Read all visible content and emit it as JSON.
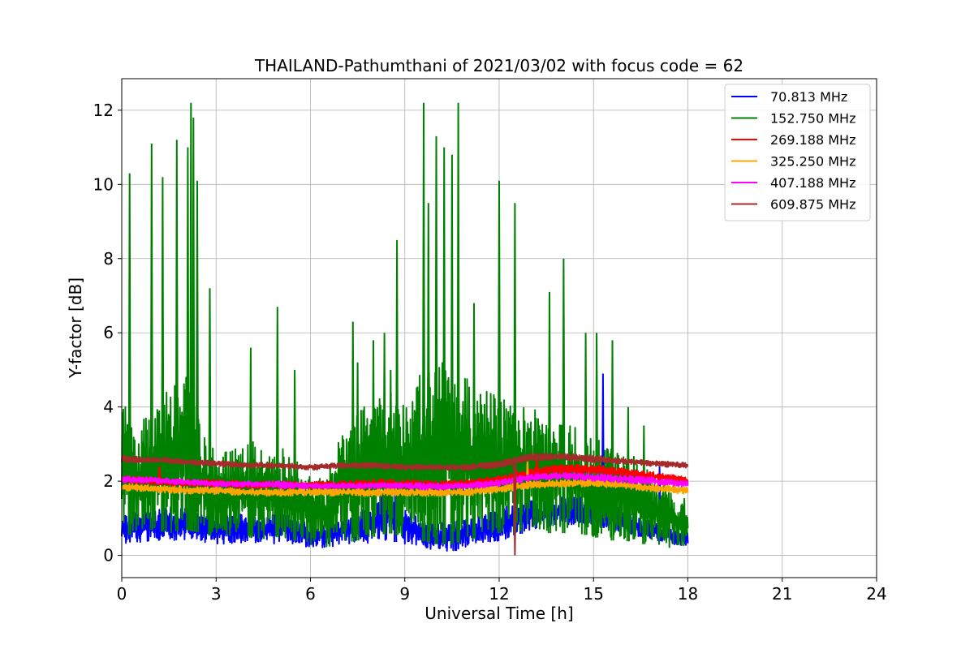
{
  "chart_data": {
    "type": "line",
    "title": "THAILAND-Pathumthani of 2021/03/02 with focus code = 62",
    "xlabel": "Universal Time [h]",
    "ylabel": "Y-factor [dB]",
    "xlim": [
      0,
      24
    ],
    "ylim": [
      -0.6,
      12.85
    ],
    "xticks": [
      0,
      3,
      6,
      9,
      12,
      15,
      18,
      21,
      24
    ],
    "yticks": [
      0,
      2,
      4,
      6,
      8,
      10,
      12
    ],
    "grid": true,
    "legend_position": "top-right",
    "series": [
      {
        "name": " 70.813 MHz",
        "color": "#0000ff",
        "x": [
          0,
          0.5,
          1,
          1.5,
          2,
          2.5,
          3,
          3.5,
          4,
          4.5,
          5,
          5.5,
          6,
          6.5,
          7,
          7.5,
          8,
          8.5,
          9,
          9.5,
          10,
          10.5,
          11,
          11.5,
          12,
          12.5,
          13,
          13.5,
          14,
          14.5,
          15,
          15.5,
          16,
          16.5,
          17,
          17.5,
          18
        ],
        "low": [
          0.3,
          0.35,
          0.4,
          0.35,
          0.4,
          0.35,
          0.3,
          0.3,
          0.35,
          0.3,
          0.3,
          0.3,
          0.2,
          0.2,
          0.3,
          0.3,
          0.35,
          0.4,
          0.3,
          0.2,
          0.15,
          0.1,
          0.2,
          0.3,
          0.4,
          0.5,
          0.7,
          0.75,
          0.8,
          0.85,
          0.8,
          0.7,
          0.6,
          0.5,
          0.4,
          0.3,
          0.25
        ],
        "high": [
          1.1,
          1.2,
          1.2,
          1.3,
          1.3,
          1.1,
          1.0,
          1.1,
          1.1,
          1.0,
          1.2,
          1.0,
          0.9,
          0.9,
          1.0,
          1.2,
          1.4,
          1.9,
          1.3,
          1.0,
          0.9,
          0.9,
          1.0,
          1.1,
          1.3,
          1.4,
          1.5,
          1.5,
          1.6,
          1.6,
          1.5,
          1.4,
          1.2,
          1.0,
          0.9,
          0.7,
          0.6
        ],
        "spikes": [
          [
            15.3,
            4.9
          ],
          [
            8.7,
            2.5
          ],
          [
            12.7,
            2.2
          ],
          [
            17.1,
            2.4
          ]
        ]
      },
      {
        "name": "152.750 MHz",
        "color": "#008000",
        "x": [
          0,
          0.5,
          1,
          1.5,
          2,
          2.5,
          3,
          3.5,
          4,
          4.5,
          5,
          5.5,
          6,
          6.5,
          7,
          7.5,
          8,
          8.5,
          9,
          9.5,
          10,
          10.5,
          11,
          11.5,
          12,
          12.5,
          13,
          13.5,
          14,
          14.5,
          15,
          15.5,
          16,
          16.5,
          17,
          17.5,
          18
        ],
        "low": [
          0.5,
          0.6,
          0.7,
          0.6,
          0.7,
          0.6,
          0.5,
          0.5,
          0.5,
          0.4,
          0.5,
          0.4,
          0.2,
          0.1,
          0.3,
          0.4,
          0.5,
          0.6,
          0.5,
          0.4,
          0.3,
          0.3,
          0.4,
          0.5,
          0.6,
          0.6,
          0.7,
          0.6,
          0.6,
          0.6,
          0.5,
          0.4,
          0.4,
          0.3,
          0.3,
          0.2,
          0.2
        ],
        "high": [
          4.2,
          3.5,
          4.0,
          4.5,
          5.0,
          3.5,
          2.8,
          3.0,
          3.2,
          2.8,
          3.0,
          2.6,
          2.2,
          2.0,
          3.5,
          4.0,
          4.2,
          4.5,
          4.0,
          5.0,
          5.5,
          5.0,
          4.8,
          4.5,
          4.3,
          4.0,
          4.2,
          4.0,
          3.8,
          3.5,
          3.2,
          3.0,
          2.8,
          2.6,
          2.0,
          1.8,
          1.5
        ],
        "spikes": [
          [
            0.25,
            10.3
          ],
          [
            0.95,
            11.1
          ],
          [
            1.3,
            10.2
          ],
          [
            1.75,
            11.2
          ],
          [
            2.1,
            11.0
          ],
          [
            2.2,
            12.2
          ],
          [
            2.28,
            11.8
          ],
          [
            2.4,
            10.1
          ],
          [
            2.8,
            7.2
          ],
          [
            4.1,
            5.6
          ],
          [
            4.95,
            6.7
          ],
          [
            5.5,
            5.0
          ],
          [
            7.35,
            6.3
          ],
          [
            7.5,
            5.2
          ],
          [
            8.0,
            5.8
          ],
          [
            8.35,
            6.0
          ],
          [
            8.55,
            5.0
          ],
          [
            8.75,
            8.5
          ],
          [
            9.6,
            12.2
          ],
          [
            9.75,
            9.5
          ],
          [
            10.0,
            11.3
          ],
          [
            10.25,
            11.0
          ],
          [
            10.5,
            10.8
          ],
          [
            10.7,
            12.2
          ],
          [
            11.2,
            6.8
          ],
          [
            12.0,
            10.1
          ],
          [
            12.5,
            9.5
          ],
          [
            13.6,
            7.1
          ],
          [
            14.05,
            8.0
          ],
          [
            14.75,
            6.0
          ],
          [
            15.1,
            6.0
          ],
          [
            15.6,
            5.8
          ],
          [
            16.1,
            4.0
          ],
          [
            16.6,
            3.5
          ]
        ]
      },
      {
        "name": "269.188 MHz",
        "color": "#ff0000",
        "x": [
          0,
          1,
          2,
          3,
          4,
          5,
          6,
          7,
          8,
          9,
          10,
          11,
          12,
          13,
          14,
          15,
          16,
          17,
          18
        ],
        "low": [
          1.95,
          1.9,
          1.85,
          1.85,
          1.8,
          1.8,
          1.8,
          1.8,
          1.8,
          1.8,
          1.8,
          1.85,
          1.9,
          2.1,
          2.2,
          2.2,
          2.1,
          2.0,
          1.9
        ],
        "high": [
          2.15,
          2.1,
          2.05,
          2.05,
          2.0,
          2.0,
          2.0,
          2.0,
          2.05,
          2.05,
          2.0,
          2.05,
          2.15,
          2.35,
          2.45,
          2.45,
          2.35,
          2.25,
          2.1
        ],
        "spikes": [
          [
            1.2,
            2.4
          ],
          [
            13.2,
            2.6
          ]
        ]
      },
      {
        "name": "325.250 MHz",
        "color": "#ffa500",
        "x": [
          0,
          1,
          2,
          3,
          4,
          5,
          6,
          7,
          8,
          9,
          10,
          11,
          12,
          13,
          14,
          15,
          16,
          17,
          18
        ],
        "low": [
          1.75,
          1.7,
          1.65,
          1.65,
          1.6,
          1.6,
          1.6,
          1.6,
          1.6,
          1.6,
          1.6,
          1.6,
          1.7,
          1.8,
          1.85,
          1.85,
          1.8,
          1.7,
          1.65
        ],
        "high": [
          1.95,
          1.9,
          1.85,
          1.85,
          1.8,
          1.8,
          1.8,
          1.8,
          1.8,
          1.8,
          1.8,
          1.8,
          1.9,
          2.0,
          2.05,
          2.05,
          2.0,
          1.9,
          1.85
        ],
        "spikes": [
          [
            12.9,
            2.6
          ]
        ]
      },
      {
        "name": "407.188 MHz",
        "color": "#ff00ff",
        "x": [
          0,
          1,
          2,
          3,
          4,
          5,
          6,
          7,
          8,
          9,
          10,
          11,
          12,
          13,
          14,
          15,
          16,
          17,
          18
        ],
        "low": [
          1.95,
          1.95,
          1.9,
          1.85,
          1.85,
          1.8,
          1.8,
          1.8,
          1.8,
          1.8,
          1.75,
          1.8,
          1.85,
          2.0,
          2.05,
          2.0,
          1.95,
          1.9,
          1.85
        ],
        "high": [
          2.15,
          2.1,
          2.05,
          2.0,
          2.0,
          2.0,
          1.95,
          1.95,
          1.95,
          1.95,
          1.95,
          1.95,
          2.05,
          2.2,
          2.25,
          2.2,
          2.15,
          2.1,
          2.0
        ],
        "spikes": []
      },
      {
        "name": "609.875 MHz",
        "color": "#a52a2a",
        "x": [
          0,
          1,
          2,
          3,
          4,
          5,
          6,
          7,
          8,
          9,
          10,
          11,
          12,
          13,
          14,
          15,
          16,
          17,
          18
        ],
        "low": [
          2.5,
          2.5,
          2.45,
          2.4,
          2.35,
          2.35,
          2.3,
          2.35,
          2.35,
          2.3,
          2.3,
          2.3,
          2.35,
          2.55,
          2.55,
          2.5,
          2.45,
          2.4,
          2.35
        ],
        "high": [
          2.7,
          2.65,
          2.6,
          2.55,
          2.5,
          2.5,
          2.45,
          2.5,
          2.5,
          2.45,
          2.45,
          2.45,
          2.55,
          2.75,
          2.75,
          2.7,
          2.6,
          2.55,
          2.5
        ],
        "spikes": [
          [
            12.5,
            0.0
          ]
        ]
      }
    ]
  }
}
